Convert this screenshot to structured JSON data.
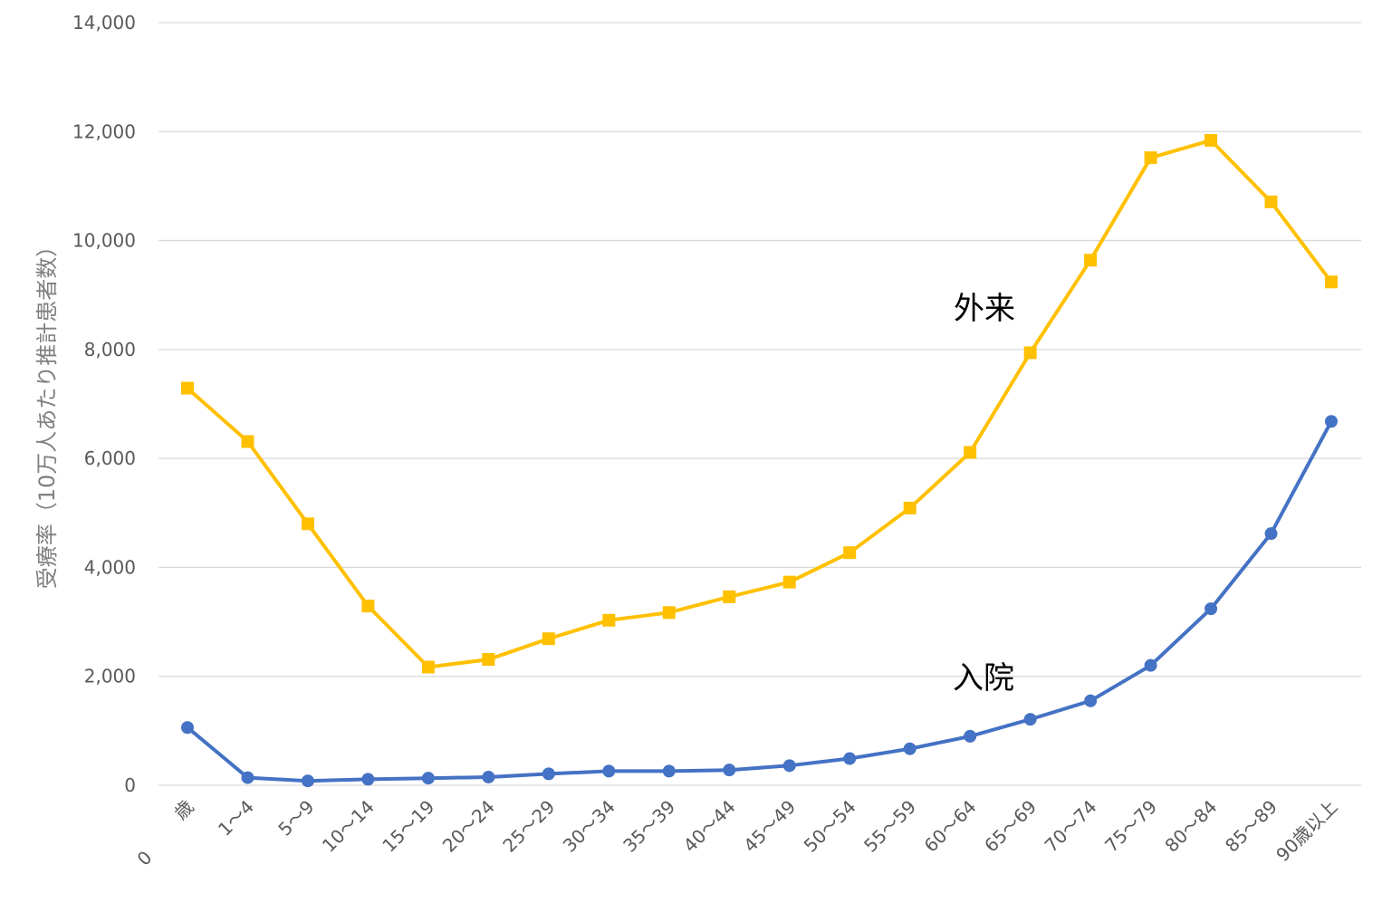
{
  "chart_data": {
    "type": "line",
    "title": "",
    "xlabel": "",
    "ylabel": "受療率（10万人あたり推計患者数）",
    "ylim": [
      0,
      14000
    ],
    "yticks": [
      0,
      2000,
      4000,
      6000,
      8000,
      10000,
      12000,
      14000
    ],
    "ytick_labels": [
      "0",
      "2,000",
      "4,000",
      "6,000",
      "8,000",
      "10,000",
      "12,000",
      "14,000"
    ],
    "categories": [
      "0歳",
      "1～4",
      "5～9",
      "10～14",
      "15～19",
      "20～24",
      "25～29",
      "30～34",
      "35～39",
      "40～44",
      "45～49",
      "50～54",
      "55～59",
      "60～64",
      "65～69",
      "70～74",
      "75～79",
      "80～84",
      "85～89",
      "90歳以上"
    ],
    "category_labels_first_split": [
      "歳",
      "0"
    ],
    "grid": true,
    "legend": "none",
    "series": [
      {
        "name": "外来",
        "color": "#FFC000",
        "marker": "square",
        "values": [
          7290,
          6310,
          4800,
          3290,
          2170,
          2310,
          2690,
          3030,
          3170,
          3460,
          3730,
          4270,
          5090,
          6110,
          7940,
          9640,
          11520,
          11840,
          10710,
          9240
        ]
      },
      {
        "name": "入院",
        "color": "#4472C4",
        "marker": "circle",
        "values": [
          1060,
          140,
          80,
          110,
          130,
          150,
          210,
          260,
          260,
          280,
          360,
          490,
          670,
          900,
          1210,
          1550,
          2200,
          3240,
          4620,
          6680
        ]
      }
    ]
  }
}
